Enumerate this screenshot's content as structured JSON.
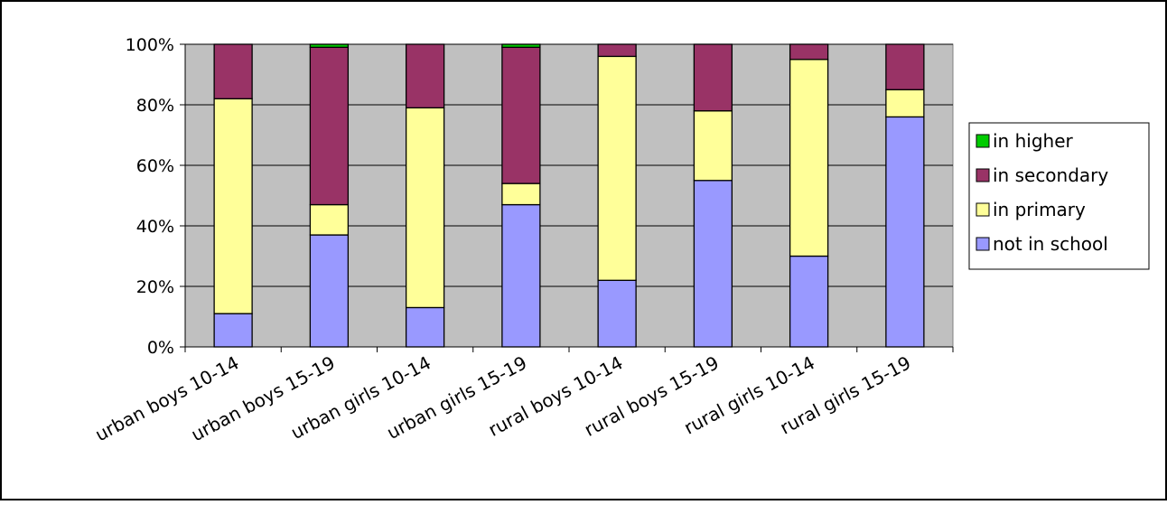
{
  "chart_data": {
    "type": "bar",
    "stacked": true,
    "categories": [
      "urban boys 10-14",
      "urban boys 15-19",
      "urban girls 10-14",
      "urban girls 15-19",
      "rural boys 10-14",
      "rural boys 15-19",
      "rural girls 10-14",
      "rural girls 15-19"
    ],
    "series": [
      {
        "name": "not in school",
        "color": "#9999ff",
        "values": [
          11,
          37,
          13,
          47,
          22,
          55,
          30,
          76
        ]
      },
      {
        "name": "in primary",
        "color": "#ffff99",
        "values": [
          71,
          10,
          66,
          7,
          74,
          23,
          65,
          9
        ]
      },
      {
        "name": "in secondary",
        "color": "#993366",
        "values": [
          18,
          52,
          21,
          45,
          4,
          22,
          5,
          15
        ]
      },
      {
        "name": "in higher",
        "color": "#00cc00",
        "values": [
          0,
          1,
          0,
          1,
          0,
          0,
          0,
          0
        ]
      }
    ],
    "legend_order": [
      "in higher",
      "in secondary",
      "in primary",
      "not in school"
    ],
    "y_ticks": [
      "0%",
      "20%",
      "40%",
      "60%",
      "80%",
      "100%"
    ],
    "ylim": [
      0,
      100
    ],
    "grid": true,
    "legend_position": "right",
    "plot_background": "#c0c0c0"
  }
}
